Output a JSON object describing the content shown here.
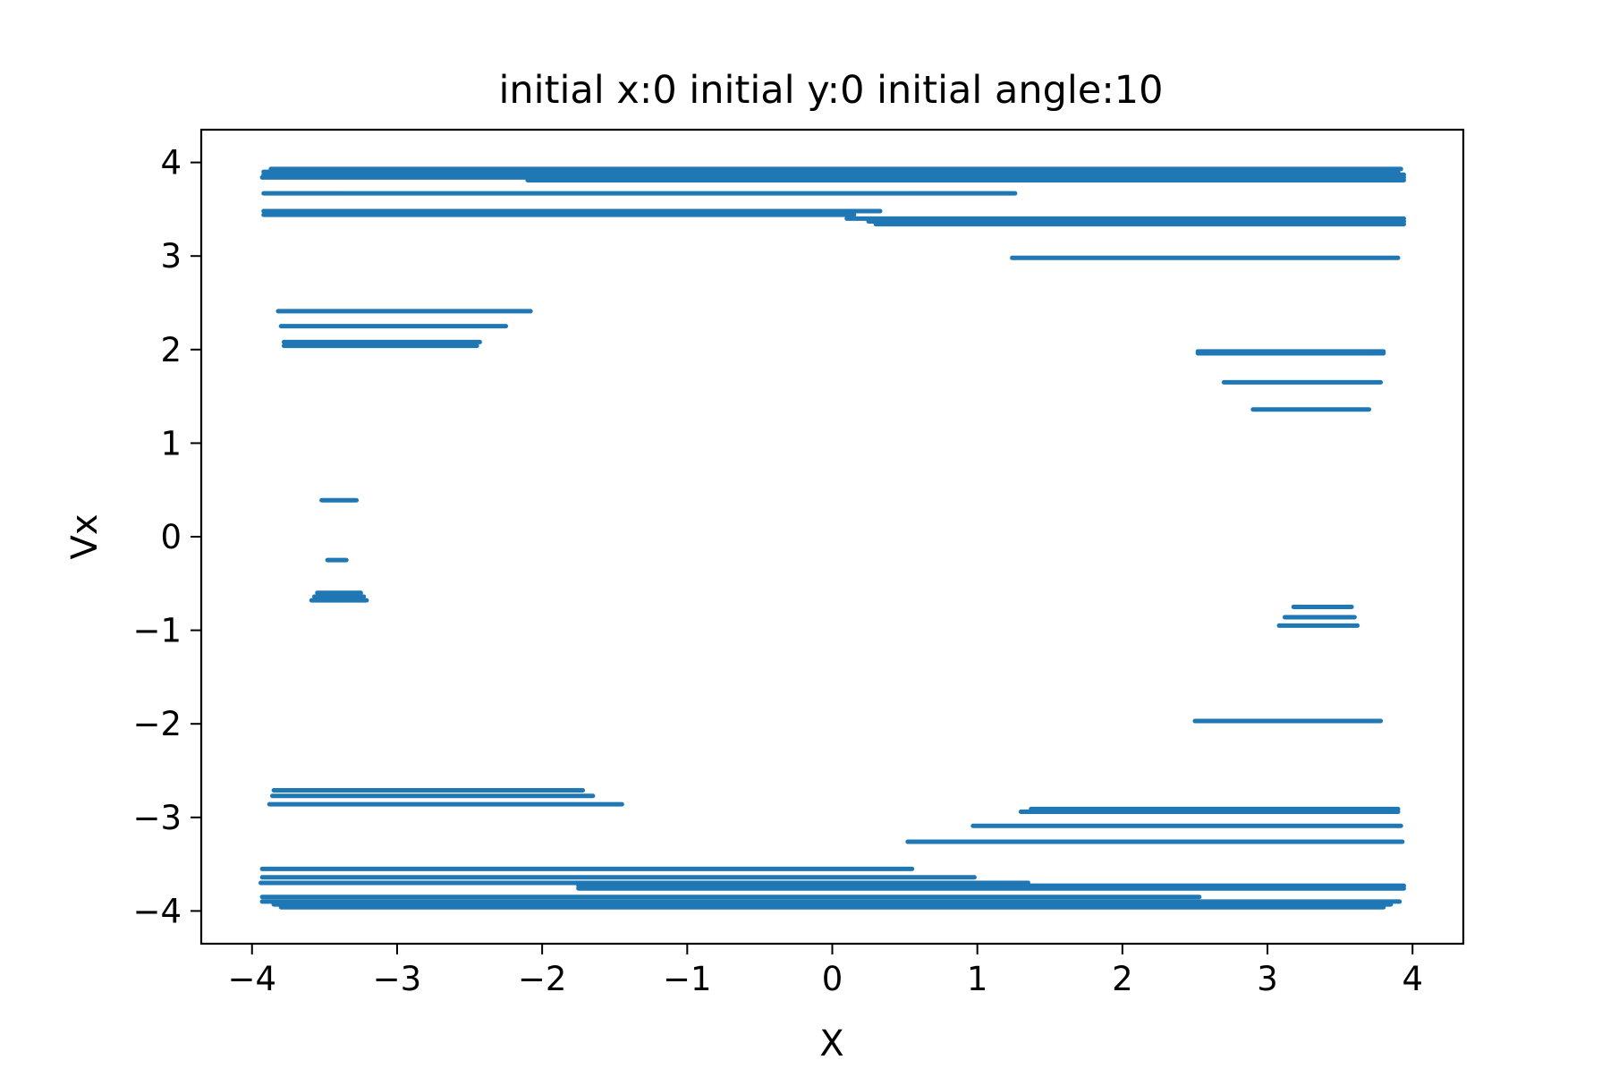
{
  "chart_data": {
    "type": "scatter",
    "title": "initial x:0  initial y:0 initial angle:10",
    "xlabel": "X",
    "ylabel": "Vx",
    "xlim": [
      -4.35,
      4.35
    ],
    "ylim": [
      -4.35,
      4.35
    ],
    "xticks": [
      -4,
      -3,
      -2,
      -1,
      0,
      1,
      2,
      3,
      4
    ],
    "yticks": [
      -4,
      -3,
      -2,
      -1,
      0,
      1,
      2,
      3,
      4
    ],
    "grid": false,
    "series_color": "#1f77b4",
    "segments": [
      {
        "x": [
          -3.87,
          3.92
        ],
        "y": 3.93
      },
      {
        "x": [
          -3.92,
          3.9
        ],
        "y": 3.9
      },
      {
        "x": [
          -3.92,
          3.94
        ],
        "y": 3.87
      },
      {
        "x": [
          -3.93,
          3.94
        ],
        "y": 3.84
      },
      {
        "x": [
          -2.1,
          3.94
        ],
        "y": 3.81
      },
      {
        "x": [
          -3.92,
          1.26
        ],
        "y": 3.67
      },
      {
        "x": [
          -3.92,
          0.33
        ],
        "y": 3.48
      },
      {
        "x": [
          -3.92,
          0.15
        ],
        "y": 3.44
      },
      {
        "x": [
          0.1,
          3.94
        ],
        "y": 3.4
      },
      {
        "x": [
          0.25,
          3.94
        ],
        "y": 3.37
      },
      {
        "x": [
          0.3,
          3.94
        ],
        "y": 3.34
      },
      {
        "x": [
          1.24,
          3.9
        ],
        "y": 2.98
      },
      {
        "x": [
          -3.82,
          -2.08
        ],
        "y": 2.41
      },
      {
        "x": [
          -3.8,
          -2.25
        ],
        "y": 2.25
      },
      {
        "x": [
          -3.78,
          -2.43
        ],
        "y": 2.08
      },
      {
        "x": [
          -3.78,
          -2.45
        ],
        "y": 2.04
      },
      {
        "x": [
          2.52,
          3.8
        ],
        "y": 1.98
      },
      {
        "x": [
          2.52,
          3.8
        ],
        "y": 1.96
      },
      {
        "x": [
          2.7,
          3.78
        ],
        "y": 1.65
      },
      {
        "x": [
          2.9,
          3.7
        ],
        "y": 1.36
      },
      {
        "x": [
          -3.52,
          -3.28
        ],
        "y": 0.39
      },
      {
        "x": [
          -3.48,
          -3.35
        ],
        "y": -0.25
      },
      {
        "x": [
          -3.55,
          -3.25
        ],
        "y": -0.6
      },
      {
        "x": [
          -3.57,
          -3.23
        ],
        "y": -0.64
      },
      {
        "x": [
          -3.59,
          -3.21
        ],
        "y": -0.68
      },
      {
        "x": [
          3.18,
          3.58
        ],
        "y": -0.75
      },
      {
        "x": [
          3.12,
          3.6
        ],
        "y": -0.86
      },
      {
        "x": [
          3.08,
          3.62
        ],
        "y": -0.95
      },
      {
        "x": [
          2.5,
          3.78
        ],
        "y": -1.97
      },
      {
        "x": [
          -3.85,
          -1.72
        ],
        "y": -2.71
      },
      {
        "x": [
          -3.86,
          -1.65
        ],
        "y": -2.77
      },
      {
        "x": [
          -3.88,
          -1.45
        ],
        "y": -2.86
      },
      {
        "x": [
          1.37,
          3.9
        ],
        "y": -2.91
      },
      {
        "x": [
          1.3,
          3.9
        ],
        "y": -2.94
      },
      {
        "x": [
          0.97,
          3.92
        ],
        "y": -3.09
      },
      {
        "x": [
          0.52,
          3.93
        ],
        "y": -3.26
      },
      {
        "x": [
          -3.93,
          0.55
        ],
        "y": -3.55
      },
      {
        "x": [
          -3.93,
          0.98
        ],
        "y": -3.64
      },
      {
        "x": [
          -3.94,
          1.35
        ],
        "y": -3.7
      },
      {
        "x": [
          -1.75,
          3.94
        ],
        "y": -3.73
      },
      {
        "x": [
          -1.75,
          3.94
        ],
        "y": -3.76
      },
      {
        "x": [
          -3.93,
          2.53
        ],
        "y": -3.85
      },
      {
        "x": [
          -3.93,
          3.91
        ],
        "y": -3.9
      },
      {
        "x": [
          -3.85,
          3.85
        ],
        "y": -3.93
      },
      {
        "x": [
          -3.8,
          3.8
        ],
        "y": -3.96
      }
    ]
  }
}
